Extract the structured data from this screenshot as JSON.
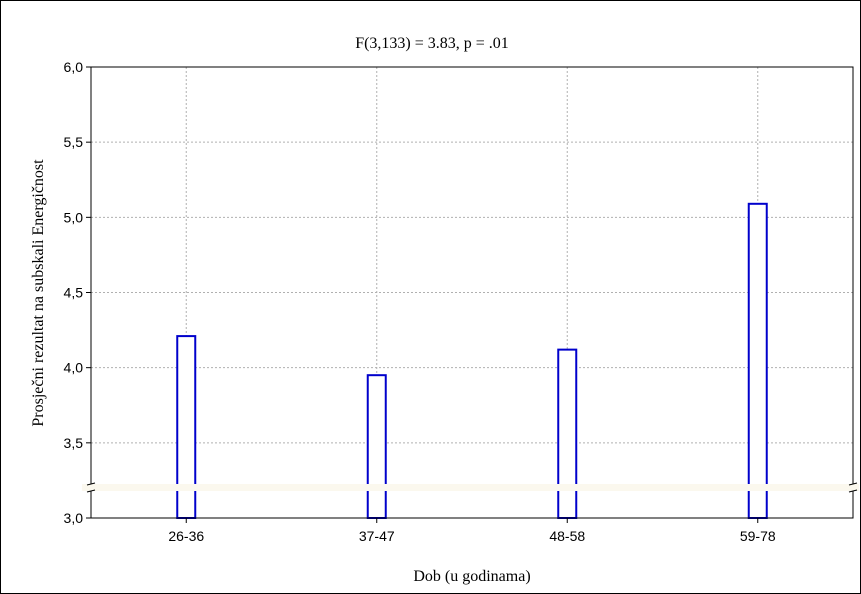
{
  "chart_data": {
    "type": "bar",
    "title": "F(3,133) = 3.83, p = .01",
    "xlabel": "Dob (u godinama)",
    "ylabel": "Prosječni rezultat na subskali Energičnost",
    "categories": [
      "26-36",
      "37-47",
      "48-58",
      "59-78"
    ],
    "values": [
      4.21,
      3.95,
      4.12,
      5.09
    ],
    "ylim": [
      3.0,
      6.0
    ],
    "yticks": [
      "3,0",
      "3,5",
      "4,0",
      "4,5",
      "5,0",
      "5,5",
      "6,0"
    ],
    "axis_break": true,
    "grid": true,
    "colors": {
      "bar_outline": "#0000cc",
      "grid": "#b0b0b0",
      "axis": "#000000"
    }
  }
}
